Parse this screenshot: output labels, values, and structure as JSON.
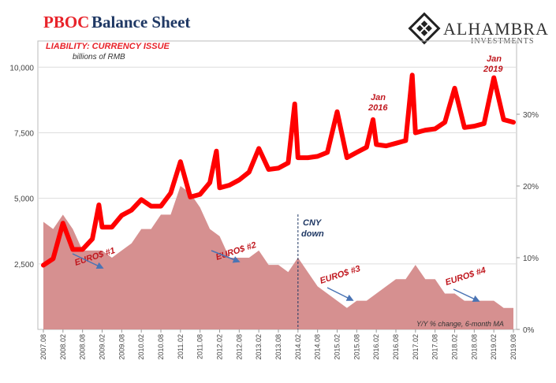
{
  "title": {
    "part1": "PBOC",
    "part2": "Balance Sheet"
  },
  "subtitle": {
    "series": "LIABILITY: CURRENCY ISSUE",
    "unit": "billions of RMB"
  },
  "logo": {
    "name": "ALHAMBRA",
    "sub": "INVESTMENTS"
  },
  "annotations": {
    "cny": {
      "line1": "CNY",
      "line2": "down"
    },
    "jan2016": {
      "line1": "Jan",
      "line2": "2016"
    },
    "jan2019": {
      "line1": "Jan",
      "line2": "2019"
    },
    "euros": [
      "EURO$ #1",
      "EURO$ #2",
      "EURO$ #3",
      "EURO$ #4"
    ],
    "secondary_label": "Y/Y % change, 6-month MA"
  },
  "colors": {
    "level": "#ff0000",
    "yoy": "#d48a8a",
    "annotation": "#c0181f",
    "arrow": "#4a74b4",
    "vline": "#1f3864"
  },
  "chart_data": {
    "type": "line",
    "x_tick_labels": [
      "2007.08",
      "2008.02",
      "2008.08",
      "2009.02",
      "2009.08",
      "2010.02",
      "2010.08",
      "2011.02",
      "2011.08",
      "2012.02",
      "2012.08",
      "2013.02",
      "2013.08",
      "2014.02",
      "2014.08",
      "2015.02",
      "2015.08",
      "2016.02",
      "2016.08",
      "2017.02",
      "2017.08",
      "2018.02",
      "2018.08",
      "2019.02",
      "2019.08"
    ],
    "y_left": {
      "ticks": [
        "2,500",
        "5,000",
        "7,500",
        "10,000"
      ],
      "range": [
        0,
        11000
      ]
    },
    "y_right": {
      "ticks": [
        "0%",
        "10%",
        "20%",
        "30%"
      ],
      "range": [
        0,
        40
      ]
    },
    "vline_x": "2014.02",
    "series": [
      {
        "axis": "left",
        "kind": "line",
        "x": [
          "2007.08",
          "2007.11",
          "2008.02",
          "2008.05",
          "2008.08",
          "2008.11",
          "2009.01",
          "2009.02",
          "2009.05",
          "2009.08",
          "2009.11",
          "2010.02",
          "2010.05",
          "2010.08",
          "2010.11",
          "2011.02",
          "2011.05",
          "2011.08",
          "2011.11",
          "2012.01",
          "2012.02",
          "2012.05",
          "2012.08",
          "2012.11",
          "2013.02",
          "2013.05",
          "2013.08",
          "2013.11",
          "2014.01",
          "2014.02",
          "2014.05",
          "2014.08",
          "2014.11",
          "2015.02",
          "2015.05",
          "2015.08",
          "2015.11",
          "2016.01",
          "2016.02",
          "2016.05",
          "2016.08",
          "2016.11",
          "2017.01",
          "2017.02",
          "2017.05",
          "2017.08",
          "2017.11",
          "2018.02",
          "2018.05",
          "2018.08",
          "2018.11",
          "2019.02",
          "2019.05",
          "2019.08"
        ],
        "values": [
          2450,
          2700,
          4050,
          3050,
          3050,
          3450,
          4750,
          3900,
          3900,
          4350,
          4550,
          4950,
          4700,
          4700,
          5200,
          6400,
          5050,
          5150,
          5600,
          6800,
          5400,
          5500,
          5700,
          6000,
          6900,
          6100,
          6150,
          6350,
          8600,
          6550,
          6550,
          6600,
          6750,
          8300,
          6550,
          6750,
          6950,
          8000,
          7050,
          7000,
          7100,
          7200,
          9700,
          7500,
          7600,
          7650,
          7900,
          9200,
          7700,
          7750,
          7850,
          9600,
          8000,
          7900
        ]
      },
      {
        "axis": "right",
        "kind": "area",
        "x": [
          "2007.08",
          "2007.11",
          "2008.02",
          "2008.05",
          "2008.08",
          "2008.11",
          "2009.02",
          "2009.05",
          "2009.08",
          "2009.11",
          "2010.02",
          "2010.05",
          "2010.08",
          "2010.11",
          "2011.02",
          "2011.05",
          "2011.08",
          "2011.11",
          "2012.02",
          "2012.05",
          "2012.08",
          "2012.11",
          "2013.02",
          "2013.05",
          "2013.08",
          "2013.11",
          "2014.02",
          "2014.05",
          "2014.08",
          "2014.11",
          "2015.02",
          "2015.05",
          "2015.08",
          "2015.11",
          "2016.02",
          "2016.05",
          "2016.08",
          "2016.11",
          "2017.02",
          "2017.05",
          "2017.08",
          "2017.11",
          "2018.02",
          "2018.05",
          "2018.08",
          "2018.11",
          "2019.02",
          "2019.05",
          "2019.08"
        ],
        "values": [
          15,
          14,
          16,
          14,
          11,
          11,
          11,
          10,
          11,
          12,
          14,
          14,
          16,
          16,
          20,
          19,
          17,
          14,
          13,
          10,
          10,
          10,
          11,
          9,
          9,
          8,
          10,
          8,
          6,
          5,
          4,
          3,
          4,
          4,
          5,
          6,
          7,
          7,
          9,
          7,
          7,
          5,
          5,
          4,
          4,
          4,
          4,
          3,
          3
        ]
      }
    ]
  }
}
